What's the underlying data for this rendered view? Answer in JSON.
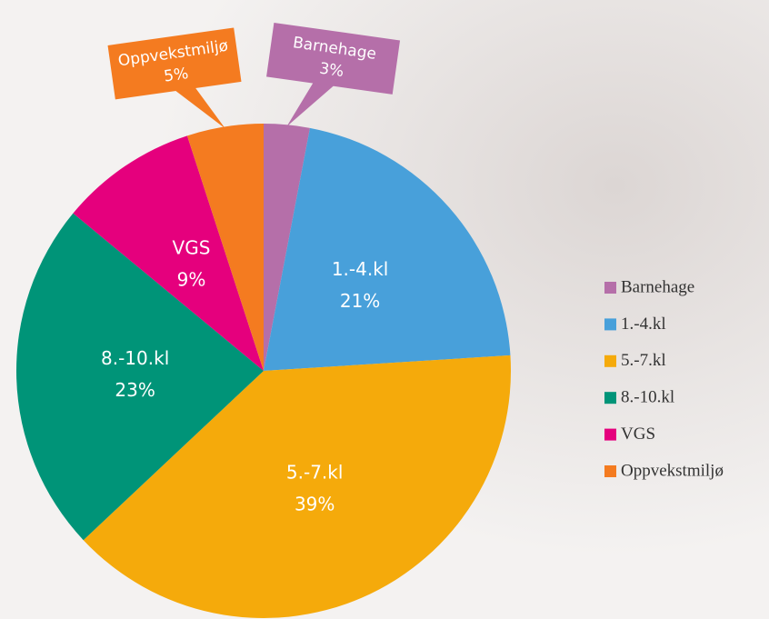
{
  "chart_data": {
    "type": "pie",
    "categories": [
      "Barnehage",
      "1.-4.kl",
      "5.-7.kl",
      "8.-10.kl",
      "VGS",
      "Oppvekstmiljø"
    ],
    "values": [
      3,
      21,
      39,
      23,
      9,
      5
    ],
    "value_labels": [
      "3%",
      "21%",
      "39%",
      "23%",
      "9%",
      "5%"
    ],
    "colors": [
      "#b56fa9",
      "#48a0da",
      "#f5aa0b",
      "#009478",
      "#e5007d",
      "#f47b20"
    ],
    "legend": "right"
  }
}
